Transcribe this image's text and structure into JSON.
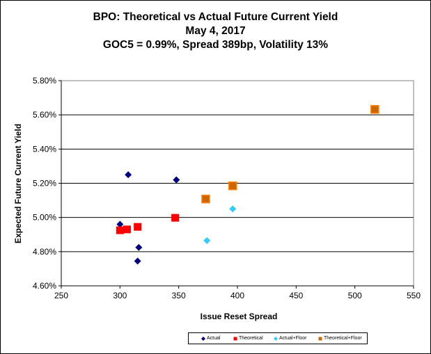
{
  "chart_data": {
    "type": "scatter",
    "title": [
      "BPO: Theoretical vs Actual Future Current Yield",
      "May 4, 2017",
      "GOC5 = 0.99%, Spread 389bp, Volatility 13%"
    ],
    "xlabel": "Issue Reset Spread",
    "ylabel": "Expected Future Current Yield",
    "xlim": [
      250,
      550
    ],
    "ylim": [
      4.6,
      5.8
    ],
    "xticks": [
      250,
      300,
      350,
      400,
      450,
      500,
      550
    ],
    "yticks": [
      4.6,
      4.8,
      5.0,
      5.2,
      5.4,
      5.6,
      5.8
    ],
    "ytick_labels": [
      "4.60%",
      "4.80%",
      "5.00%",
      "5.20%",
      "5.40%",
      "5.60%",
      "5.80%"
    ],
    "grid": "horizontal",
    "legend_position": "bottom",
    "series": [
      {
        "name": "Actual",
        "marker": "diamond",
        "color": "#000080",
        "points": [
          [
            300,
            4.96
          ],
          [
            307,
            5.25
          ],
          [
            348,
            5.22
          ],
          [
            316,
            4.825
          ],
          [
            315,
            4.745
          ]
        ]
      },
      {
        "name": "Theoretical",
        "marker": "square",
        "color": "#ff0000",
        "points": [
          [
            300,
            4.925
          ],
          [
            306,
            4.93
          ],
          [
            315,
            4.945
          ],
          [
            347,
            4.998
          ]
        ]
      },
      {
        "name": "Actual+Floor",
        "marker": "diamond",
        "color": "#33ccff",
        "points": [
          [
            374,
            4.865
          ],
          [
            396,
            5.05
          ]
        ]
      },
      {
        "name": "Theoretical+Floor",
        "marker": "square",
        "color": "#cc6600",
        "edge": "#ff8000",
        "points": [
          [
            373,
            5.108
          ],
          [
            396,
            5.185
          ],
          [
            517,
            5.632
          ]
        ]
      }
    ]
  }
}
